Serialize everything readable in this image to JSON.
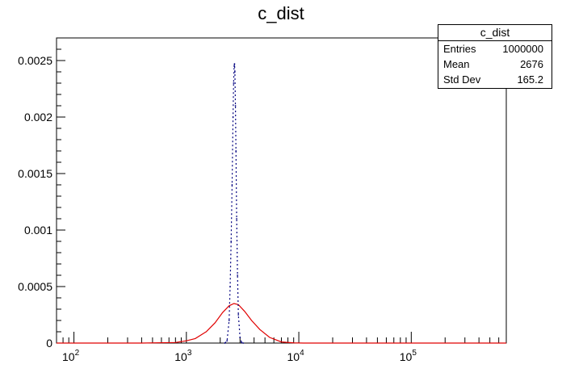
{
  "title": "c_dist",
  "stats": {
    "name": "c_dist",
    "rows": [
      {
        "label": "Entries",
        "value": "1000000"
      },
      {
        "label": "Mean",
        "value": "2676"
      },
      {
        "label": "Std Dev",
        "value": "165.2"
      }
    ]
  },
  "chart_data": {
    "type": "line",
    "title": "c_dist",
    "xlabel": "",
    "ylabel": "",
    "x_scale": "log",
    "xlim": [
      70,
      700000
    ],
    "ylim": [
      0,
      0.0027
    ],
    "x_ticks": [
      {
        "base": "10",
        "exp": "2"
      },
      {
        "base": "10",
        "exp": "3"
      },
      {
        "base": "10",
        "exp": "4"
      },
      {
        "base": "10",
        "exp": "5"
      }
    ],
    "y_ticks": [
      "0",
      "0.0005",
      "0.001",
      "0.0015",
      "0.002",
      "0.0025"
    ],
    "grid": false,
    "colors": {
      "hist": "#00007f",
      "fit": "#e00000"
    },
    "series": [
      {
        "style": "dotted histogram",
        "x": [
          2200,
          2300,
          2400,
          2450,
          2500,
          2550,
          2600,
          2630,
          2660,
          2680,
          2700,
          2730,
          2760,
          2800,
          2850,
          2900,
          3000,
          3100,
          3200
        ],
        "values": [
          0,
          2e-05,
          0.0002,
          0.0005,
          0.0009,
          0.0014,
          0.002,
          0.0023,
          0.00245,
          0.00247,
          0.0024,
          0.0021,
          0.0017,
          0.0011,
          0.0006,
          0.00025,
          5e-05,
          5e-06,
          0
        ]
      },
      {
        "style": "smooth curve",
        "x": [
          70,
          400,
          800,
          1000,
          1200,
          1500,
          1800,
          2100,
          2400,
          2650,
          2900,
          3300,
          3800,
          4500,
          5500,
          7000,
          9000,
          11000,
          14000,
          700000
        ],
        "values": [
          0,
          0,
          5e-06,
          2e-05,
          4e-05,
          0.0001,
          0.00018,
          0.00027,
          0.00033,
          0.00035,
          0.00034,
          0.00028,
          0.0002,
          0.00012,
          5e-05,
          1e-05,
          2e-06,
          0,
          0,
          0
        ]
      }
    ]
  }
}
